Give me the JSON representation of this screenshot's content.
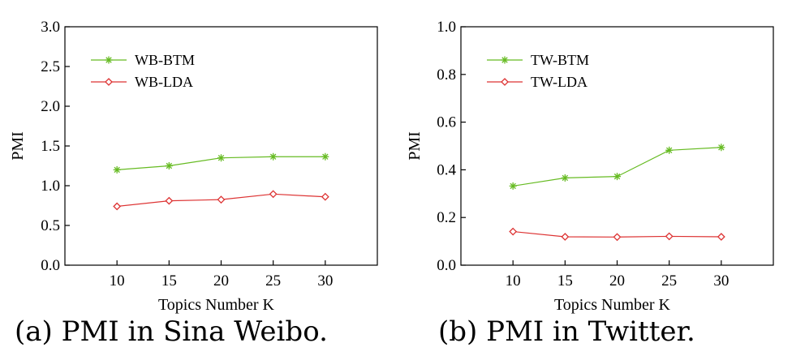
{
  "chart_data": [
    {
      "type": "line",
      "caption": "(a) PMI in Sina Weibo.",
      "xlabel": "Topics Number K",
      "ylabel": "PMI",
      "x": [
        10,
        15,
        20,
        25,
        30
      ],
      "xticks": [
        "10",
        "15",
        "20",
        "25",
        "30"
      ],
      "xlim": [
        5,
        35
      ],
      "ylim": [
        0,
        3.0
      ],
      "yticks": [
        "0.0",
        "0.5",
        "1.0",
        "1.5",
        "2.0",
        "2.5",
        "3.0"
      ],
      "grid": false,
      "legend_position": "top-left",
      "series": [
        {
          "name": "WB-BTM",
          "marker": "asterisk",
          "color": "#66bb22",
          "values": [
            1.2,
            1.25,
            1.35,
            1.365,
            1.365
          ]
        },
        {
          "name": "WB-LDA",
          "marker": "diamond",
          "color": "#dd3333",
          "values": [
            0.74,
            0.81,
            0.825,
            0.895,
            0.86
          ]
        }
      ]
    },
    {
      "type": "line",
      "caption": "(b) PMI in Twitter.",
      "xlabel": "Topics Number K",
      "ylabel": "PMI",
      "x": [
        10,
        15,
        20,
        25,
        30
      ],
      "xticks": [
        "10",
        "15",
        "20",
        "25",
        "30"
      ],
      "xlim": [
        5,
        35
      ],
      "ylim": [
        0,
        1.0
      ],
      "yticks": [
        "0.0",
        "0.2",
        "0.4",
        "0.6",
        "0.8",
        "1.0"
      ],
      "grid": false,
      "legend_position": "top-left",
      "series": [
        {
          "name": "TW-BTM",
          "marker": "asterisk",
          "color": "#66bb22",
          "values": [
            0.332,
            0.366,
            0.372,
            0.482,
            0.494
          ]
        },
        {
          "name": "TW-LDA",
          "marker": "diamond",
          "color": "#dd3333",
          "values": [
            0.141,
            0.119,
            0.118,
            0.121,
            0.119
          ]
        }
      ]
    }
  ]
}
